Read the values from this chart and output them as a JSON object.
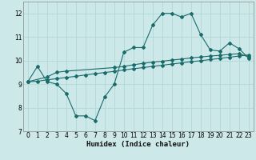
{
  "xlabel": "Humidex (Indice chaleur)",
  "bg_color": "#cce8e8",
  "grid_color": "#b0d8d8",
  "line_color": "#1a6b6b",
  "xlim": [
    -0.5,
    23.5
  ],
  "ylim": [
    7,
    12.5
  ],
  "yticks": [
    7,
    8,
    9,
    10,
    11,
    12
  ],
  "xticks": [
    0,
    1,
    2,
    3,
    4,
    5,
    6,
    7,
    8,
    9,
    10,
    11,
    12,
    13,
    14,
    15,
    16,
    17,
    18,
    19,
    20,
    21,
    22,
    23
  ],
  "line1_x": [
    0,
    1,
    2,
    3,
    4,
    5,
    6,
    7,
    8,
    9,
    10,
    11,
    12,
    13,
    14,
    15,
    16,
    17,
    18,
    19,
    20,
    21,
    22,
    23
  ],
  "line1_y": [
    9.1,
    9.75,
    9.1,
    9.0,
    8.6,
    7.65,
    7.65,
    7.45,
    8.45,
    9.0,
    10.35,
    10.55,
    10.55,
    11.5,
    12.0,
    12.0,
    11.85,
    12.0,
    11.1,
    10.45,
    10.4,
    10.75,
    10.5,
    10.1
  ],
  "line2_x": [
    0,
    2,
    3,
    4,
    9,
    10,
    11,
    12,
    13,
    14,
    15,
    16,
    17,
    18,
    19,
    20,
    21,
    22,
    23
  ],
  "line2_y": [
    9.1,
    9.3,
    9.5,
    9.55,
    9.7,
    9.75,
    9.82,
    9.88,
    9.93,
    9.97,
    10.02,
    10.06,
    10.11,
    10.15,
    10.19,
    10.22,
    10.26,
    10.29,
    10.15
  ],
  "line3_x": [
    0,
    1,
    2,
    3,
    4,
    5,
    6,
    7,
    8,
    9,
    10,
    11,
    12,
    13,
    14,
    15,
    16,
    17,
    18,
    19,
    20,
    21,
    22,
    23
  ],
  "line3_y": [
    9.1,
    9.12,
    9.18,
    9.23,
    9.28,
    9.33,
    9.39,
    9.44,
    9.49,
    9.54,
    9.6,
    9.65,
    9.7,
    9.75,
    9.8,
    9.85,
    9.9,
    9.95,
    9.99,
    10.04,
    10.09,
    10.14,
    10.19,
    10.24
  ],
  "marker": "D",
  "markersize": 2.0,
  "linewidth": 0.8
}
